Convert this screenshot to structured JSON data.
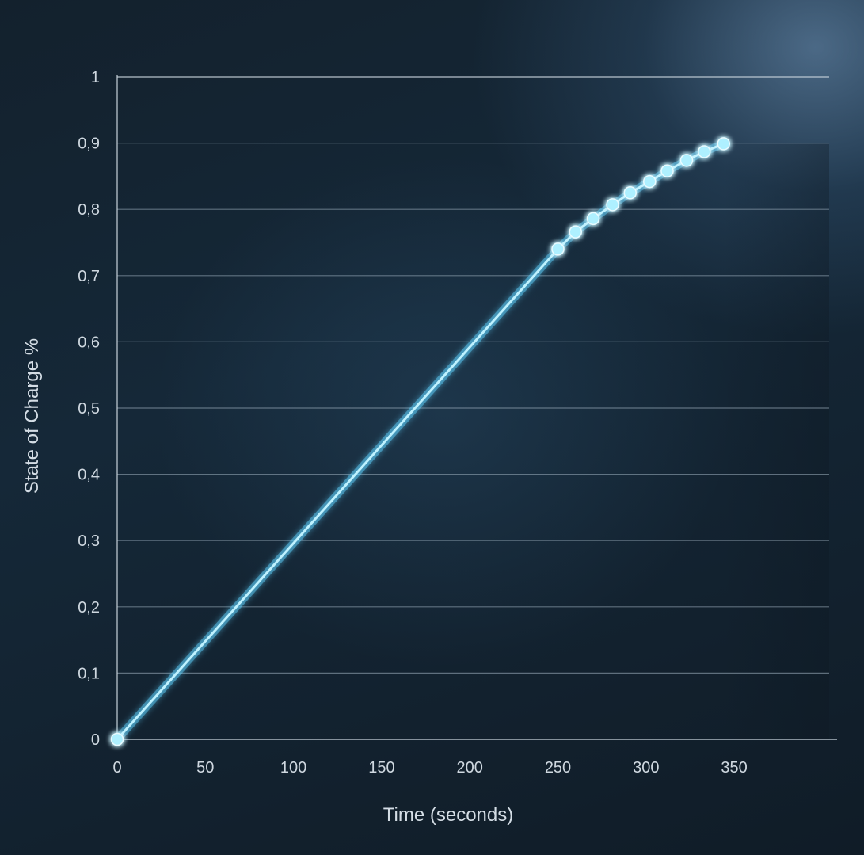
{
  "chart_data": {
    "type": "line",
    "title": "",
    "xlabel": "Time (seconds)",
    "ylabel": "State of Charge %",
    "xlim": [
      0,
      400
    ],
    "ylim": [
      0,
      1
    ],
    "x_ticks": [
      {
        "value": 0,
        "label": "0"
      },
      {
        "value": 50,
        "label": "50"
      },
      {
        "value": 100,
        "label": "100"
      },
      {
        "value": 150,
        "label": "150"
      },
      {
        "value": 200,
        "label": "200"
      },
      {
        "value": 250,
        "label": "250"
      },
      {
        "value": 300,
        "label": "300"
      },
      {
        "value": 350,
        "label": "350"
      }
    ],
    "y_ticks": [
      {
        "value": 0,
        "label": "0"
      },
      {
        "value": 0.1,
        "label": "0,1"
      },
      {
        "value": 0.2,
        "label": "0,2"
      },
      {
        "value": 0.3,
        "label": "0,3"
      },
      {
        "value": 0.4,
        "label": "0,4"
      },
      {
        "value": 0.5,
        "label": "0,5"
      },
      {
        "value": 0.6,
        "label": "0,6"
      },
      {
        "value": 0.7,
        "label": "0,7"
      },
      {
        "value": 0.8,
        "label": "0,8"
      },
      {
        "value": 0.9,
        "label": "0,9"
      },
      {
        "value": 1,
        "label": "1"
      }
    ],
    "grid": true,
    "legend": "none",
    "series": [
      {
        "line_color": "#5fd3ff",
        "marker_color": "#aef0ff",
        "points": [
          {
            "x": 0,
            "y": 0,
            "marker": true
          },
          {
            "x": 250,
            "y": 0.74,
            "marker": true
          },
          {
            "x": 260,
            "y": 0.766,
            "marker": true
          },
          {
            "x": 270,
            "y": 0.786,
            "marker": true
          },
          {
            "x": 281,
            "y": 0.807,
            "marker": true
          },
          {
            "x": 291,
            "y": 0.825,
            "marker": true
          },
          {
            "x": 302,
            "y": 0.842,
            "marker": true
          },
          {
            "x": 312,
            "y": 0.858,
            "marker": true
          },
          {
            "x": 323,
            "y": 0.874,
            "marker": true
          },
          {
            "x": 333,
            "y": 0.887,
            "marker": true
          },
          {
            "x": 344,
            "y": 0.899,
            "marker": true
          }
        ]
      }
    ]
  }
}
